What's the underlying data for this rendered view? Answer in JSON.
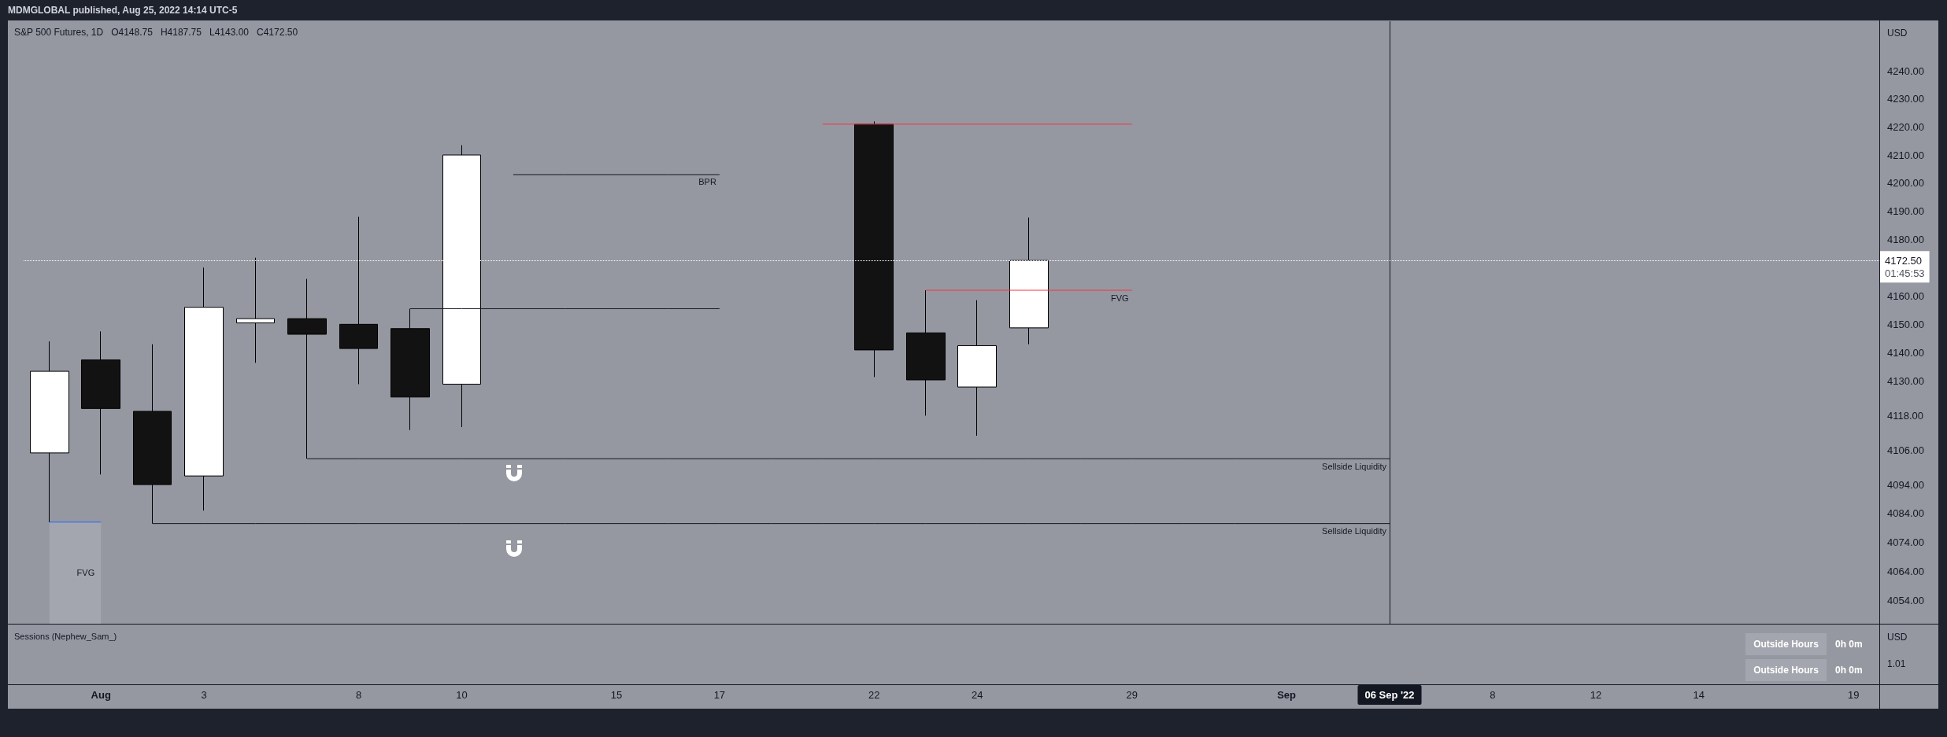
{
  "chart_data": {
    "type": "candlestick",
    "title": "S&P 500 Futures, 1D",
    "ylabel": "USD",
    "categories": [
      null,
      "Aug",
      null,
      "3",
      null,
      null,
      "8",
      null,
      "10",
      null,
      null,
      "15",
      null,
      "17",
      null,
      null,
      "22",
      null,
      "24",
      null,
      null,
      "29",
      null,
      null,
      "Sep",
      null,
      "06 Sep '22",
      null,
      "8",
      null,
      "12",
      null,
      "14",
      null,
      null,
      "19"
    ],
    "ohlc": [
      [
        4105,
        4144,
        4081,
        4133.5
      ],
      [
        4137.5,
        4147.5,
        4097.5,
        4120.5
      ],
      [
        4119.5,
        4143,
        4080.5,
        4094
      ],
      [
        4097,
        4170,
        4085,
        4156
      ],
      [
        4150.5,
        4173.5,
        4136.5,
        4152
      ],
      [
        4152,
        4166,
        4103,
        4146.5
      ],
      [
        4150,
        4188,
        4129,
        4141.5
      ],
      [
        4148.5,
        4155.5,
        4113,
        4124.5
      ],
      [
        4129,
        4213.5,
        4114,
        4210
      ],
      null,
      null,
      null,
      null,
      null,
      null,
      null,
      [
        4221,
        4222,
        4131.5,
        4141
      ],
      [
        4147,
        4162,
        4118,
        4130.5
      ],
      [
        4128,
        4158.5,
        4111,
        4142.5
      ],
      [
        4148.75,
        4187.75,
        4143,
        4172.5
      ],
      null,
      null,
      null,
      null,
      null,
      null,
      null,
      null,
      null,
      null,
      null,
      null,
      null,
      null,
      null,
      null
    ],
    "colors": [
      "#ffffff",
      "#121212",
      "#121212",
      "#ffffff",
      "#ffffff",
      "#121212",
      "#121212",
      "#121212",
      "#ffffff",
      null,
      null,
      null,
      null,
      null,
      null,
      null,
      "#121212",
      "#121212",
      "#ffffff",
      "#ffffff",
      null,
      null,
      null,
      null,
      null,
      null,
      null,
      null,
      null,
      null,
      null,
      null,
      null,
      null,
      null,
      null
    ],
    "series": [
      {
        "type": "area",
        "name": "FVG",
        "color": "#a3a6ae",
        "values": [
          4081,
          4081,
          null,
          null,
          null,
          null,
          null,
          null,
          null,
          null,
          null,
          null,
          null,
          null,
          null,
          null,
          null,
          null,
          null,
          null,
          null,
          null,
          null,
          null,
          null,
          null,
          null,
          null,
          null,
          null,
          null,
          null,
          null,
          null,
          null,
          null
        ]
      },
      {
        "type": "line",
        "name": "Sellside Liquidity",
        "color": "#131722",
        "values": [
          null,
          null,
          null,
          null,
          null,
          4103,
          4103,
          4103,
          4103,
          4103,
          4103,
          4103,
          4103,
          4103,
          4103,
          4103,
          4103,
          4103,
          4103,
          4103,
          4103,
          4103,
          4103,
          4103,
          4103,
          4103,
          4103,
          null,
          null,
          null,
          null,
          null,
          null,
          null,
          null,
          null
        ]
      },
      {
        "type": "line",
        "name": "Sellside Liquidity",
        "color": "#131722",
        "values": [
          null,
          null,
          4080.5,
          4080.5,
          4080.5,
          4080.5,
          4080.5,
          4080.5,
          4080.5,
          4080.5,
          4080.5,
          4080.5,
          4080.5,
          4080.5,
          4080.5,
          4080.5,
          4080.5,
          4080.5,
          4080.5,
          4080.5,
          4080.5,
          4080.5,
          4080.5,
          4080.5,
          4080.5,
          4080.5,
          4080.5,
          null,
          null,
          null,
          null,
          null,
          null,
          null,
          null,
          null
        ]
      },
      {
        "type": "line",
        "color": "#131722",
        "values": [
          null,
          null,
          null,
          null,
          null,
          null,
          null,
          4155.5,
          4155.5,
          4155.5,
          4155.5,
          4155.5,
          4155.5,
          4155.5,
          null,
          null,
          null,
          null,
          null,
          null,
          null,
          null,
          null,
          null,
          null,
          null,
          null,
          null,
          null,
          null,
          null,
          null,
          null,
          null,
          null,
          null
        ]
      },
      {
        "type": "line",
        "name": "BPR",
        "color": "#131722",
        "values": [
          null,
          null,
          null,
          null,
          null,
          null,
          null,
          null,
          null,
          4203,
          4203,
          4203,
          4203,
          4203,
          null,
          null,
          null,
          null,
          null,
          null,
          null,
          null,
          null,
          null,
          null,
          null,
          null,
          null,
          null,
          null,
          null,
          null,
          null,
          null,
          null,
          null
        ]
      },
      {
        "type": "line",
        "color": "#f23645",
        "values": [
          null,
          null,
          null,
          null,
          null,
          null,
          null,
          null,
          null,
          null,
          null,
          null,
          null,
          null,
          null,
          4221,
          4221,
          4221,
          4221,
          4221,
          4221,
          4221,
          null,
          null,
          null,
          null,
          null,
          null,
          null,
          null,
          null,
          null,
          null,
          null,
          null,
          null
        ]
      },
      {
        "type": "line",
        "name": "FVG",
        "color": "#f23645",
        "values": [
          null,
          null,
          null,
          null,
          null,
          null,
          null,
          null,
          null,
          null,
          null,
          null,
          null,
          null,
          null,
          null,
          null,
          4162,
          4162,
          4162,
          4162,
          4162,
          null,
          null,
          null,
          null,
          null,
          null,
          null,
          null,
          null,
          null,
          null,
          null,
          null,
          null
        ]
      }
    ],
    "ylim": [
      4046,
      4258
    ],
    "yticks": [
      {
        "value": 4054,
        "label": "4054.00"
      },
      {
        "value": 4064,
        "label": "4064.00"
      },
      {
        "value": 4074,
        "label": "4074.00"
      },
      {
        "value": 4084,
        "label": "4084.00"
      },
      {
        "value": 4094,
        "label": "4094.00"
      },
      {
        "value": 4106,
        "label": "4106.00"
      },
      {
        "value": 4118,
        "label": "4118.00"
      },
      {
        "value": 4130,
        "label": "4130.00"
      },
      {
        "value": 4140,
        "label": "4140.00"
      },
      {
        "value": 4150,
        "label": "4150.00"
      },
      {
        "value": 4160,
        "label": "4160.00"
      },
      {
        "value": 4180,
        "label": "4180.00"
      },
      {
        "value": 4190,
        "label": "4190.00"
      },
      {
        "value": 4200,
        "label": "4200.00"
      },
      {
        "value": 4210,
        "label": "4210.00"
      },
      {
        "value": 4220,
        "label": "4220.00"
      },
      {
        "value": 4230,
        "label": "4230.00"
      },
      {
        "value": 4240,
        "label": "4240.00"
      }
    ],
    "log": true,
    "grid": false,
    "legend": false,
    "marker": "none",
    "ref_lines": [
      {
        "axis": "y",
        "value": 4172.5,
        "label": "4172.50",
        "color": "#ffffff",
        "line_style": "dotted"
      },
      {
        "axis": "x",
        "value": "06 Sep '22",
        "color": "#131722"
      }
    ],
    "annotations": [
      "MDMGLOBAL published, Aug 25, 2022 14:14 UTC-5",
      "O4148.75",
      "H4187.75",
      "L4143.00",
      "C4172.50",
      "Sessions (Nephew_Sam_)",
      "Outside Hours",
      "0h 0m",
      "Outside Hours",
      "0h 0m",
      "USD",
      "1.01",
      "01:45:53"
    ]
  }
}
